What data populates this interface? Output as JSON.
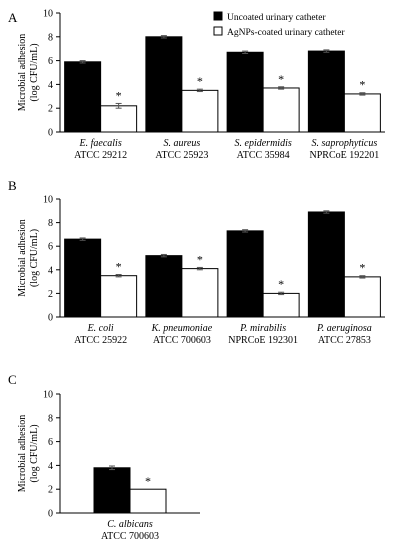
{
  "legend": {
    "uncoated": "Uncoated urinary catheter",
    "coated": "AgNPs-coated urinary catheter",
    "uncoated_color": "#000000",
    "coated_color": "#ffffff"
  },
  "chart_data": [
    {
      "type": "bar",
      "panel": "A",
      "ylabel": [
        "Microbial adhesion",
        "(log CFU/mL)"
      ],
      "ylim": [
        0,
        10
      ],
      "yticks": [
        0,
        2,
        4,
        6,
        8,
        10
      ],
      "categories": [
        {
          "species": "E. faecalis",
          "strain": "ATCC 29212"
        },
        {
          "species": "S. aureus",
          "strain": "ATCC 25923"
        },
        {
          "species": "S. epidermidis",
          "strain": "ATCC 35984"
        },
        {
          "species": "S. saprophyticus",
          "strain": "NPRCoE 192201"
        }
      ],
      "series": [
        {
          "name": "Uncoated urinary catheter",
          "values": [
            5.9,
            8.0,
            6.7,
            6.8
          ],
          "errors": [
            0.1,
            0.1,
            0.1,
            0.1
          ]
        },
        {
          "name": "AgNPs-coated urinary catheter",
          "values": [
            2.2,
            3.5,
            3.7,
            3.2
          ],
          "errors": [
            0.2,
            0.1,
            0.1,
            0.1
          ]
        }
      ],
      "significance": [
        "*",
        "*",
        "*",
        "*"
      ],
      "legend_position": "top-right"
    },
    {
      "type": "bar",
      "panel": "B",
      "ylabel": [
        "Microbial adhesion",
        "(log CFU/mL)"
      ],
      "ylim": [
        0,
        10
      ],
      "yticks": [
        0,
        2,
        4,
        6,
        8,
        10
      ],
      "categories": [
        {
          "species": "E. coli",
          "strain": "ATCC 25922"
        },
        {
          "species": "K. pneumoniae",
          "strain": "ATCC 700603"
        },
        {
          "species": "P. mirabilis",
          "strain": "NPRCoE 192301"
        },
        {
          "species": "P. aeruginosa",
          "strain": "ATCC 27853"
        }
      ],
      "series": [
        {
          "name": "Uncoated urinary catheter",
          "values": [
            6.6,
            5.2,
            7.3,
            8.9
          ],
          "errors": [
            0.1,
            0.1,
            0.1,
            0.1
          ]
        },
        {
          "name": "AgNPs-coated urinary catheter",
          "values": [
            3.5,
            4.1,
            2.0,
            3.4
          ],
          "errors": [
            0.1,
            0.1,
            0.1,
            0.1
          ]
        }
      ],
      "significance": [
        "*",
        "*",
        "*",
        "*"
      ]
    },
    {
      "type": "bar",
      "panel": "C",
      "ylabel": [
        "Microbial adhesion",
        "(log CFU/mL)"
      ],
      "ylim": [
        0,
        10
      ],
      "yticks": [
        0,
        2,
        4,
        6,
        8,
        10
      ],
      "categories": [
        {
          "species": "C. albicans",
          "strain": "ATCC 700603"
        }
      ],
      "series": [
        {
          "name": "Uncoated urinary catheter",
          "values": [
            3.8
          ],
          "errors": [
            0.15
          ]
        },
        {
          "name": "AgNPs-coated urinary catheter",
          "values": [
            2.0
          ],
          "errors": [
            0.0
          ]
        }
      ],
      "significance": [
        "*"
      ]
    }
  ]
}
